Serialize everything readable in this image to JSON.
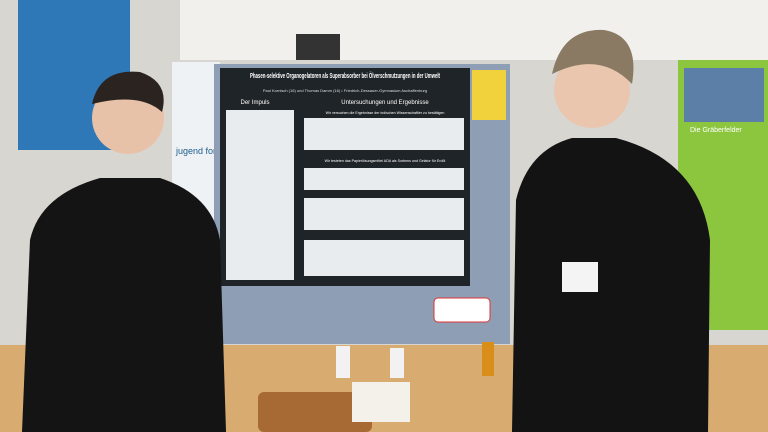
{
  "poster": {
    "title": "Phasen-selektive Organogelatoren als Superabsorber bei Ölverschmutzungen in der Umwelt",
    "authors": "Paul Kornisch (16) und Thomas Damm (16) • Friedrich-Dessauer-Gymnasium Aschaffenburg",
    "sections": [
      "Der Impuls",
      "Untersuchungen und Ergebnisse"
    ],
    "captions": [
      "Wir versuchen die Ergebnisse der indischen Wissenschaftler zu bestätigen",
      "Wir testeten das Papierlösungsmittel ADA als Sorbens und Gelator für Erdöl"
    ]
  },
  "banner": "jugend forscht",
  "side_poster": "Die Gräberfelder"
}
